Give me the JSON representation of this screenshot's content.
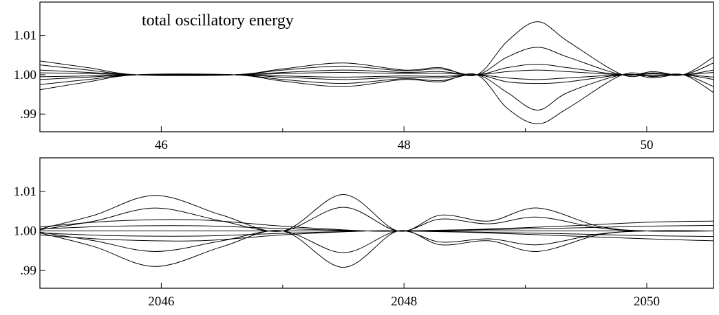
{
  "chart_data": [
    {
      "type": "line",
      "title": "total oscillatory energy",
      "xlabel": "",
      "ylabel": "",
      "xlim": [
        45.0,
        50.55
      ],
      "ylim": [
        0.9855,
        1.0185
      ],
      "x_ticks": [
        46,
        48,
        50
      ],
      "x_tick_labels": [
        "46",
        "48",
        "50"
      ],
      "x_minor_ticks": [
        47,
        49
      ],
      "y_ticks": [
        0.99,
        1.0,
        1.01
      ],
      "y_tick_labels": [
        ".99",
        "1.00",
        "1.01"
      ],
      "grid": false,
      "series": [
        {
          "x": [
            45.0,
            45.4,
            45.8,
            46.6,
            47.0,
            47.5,
            48.0,
            48.3,
            48.6,
            48.85,
            49.1,
            49.35,
            49.8,
            50.05,
            50.3,
            50.55
          ],
          "values": [
            1.0035,
            1.0018,
            1.0,
            1.0,
            1.0015,
            1.003,
            1.0012,
            1.0018,
            1.0,
            1.0085,
            1.0135,
            1.0085,
            1.0,
            1.0005,
            1.0,
            1.0045
          ]
        },
        {
          "x": [
            45.0,
            45.4,
            45.8,
            46.6,
            47.0,
            47.5,
            48.0,
            48.3,
            48.6,
            48.85,
            49.1,
            49.35,
            49.8,
            50.05,
            50.3,
            50.55
          ],
          "values": [
            0.9962,
            0.9982,
            1.0,
            1.0,
            0.9984,
            0.997,
            0.9988,
            0.9982,
            1.0,
            0.9915,
            0.9875,
            0.9915,
            1.0,
            0.9995,
            1.0,
            0.9955
          ]
        },
        {
          "x": [
            45.0,
            45.4,
            45.8,
            46.6,
            47.0,
            47.5,
            48.0,
            48.3,
            48.6,
            48.85,
            49.1,
            49.35,
            49.8,
            50.05,
            50.3,
            50.55
          ],
          "values": [
            1.0025,
            1.0012,
            1.0,
            1.0,
            1.0012,
            1.0022,
            1.001,
            1.0015,
            1.0,
            1.0045,
            1.007,
            1.0045,
            1.0,
            1.0008,
            1.0,
            1.003
          ]
        },
        {
          "x": [
            45.0,
            45.4,
            45.8,
            46.6,
            47.0,
            47.5,
            48.0,
            48.3,
            48.6,
            48.85,
            49.1,
            49.35,
            49.8,
            50.05,
            50.3,
            50.55
          ],
          "values": [
            0.9975,
            0.9988,
            1.0,
            1.0,
            0.9988,
            0.9978,
            0.999,
            0.9985,
            1.0,
            0.9955,
            0.991,
            0.9955,
            1.0,
            0.9992,
            1.0,
            0.997
          ]
        },
        {
          "x": [
            45.0,
            45.4,
            45.8,
            46.6,
            47.0,
            47.5,
            48.0,
            48.3,
            48.6,
            48.85,
            49.1,
            49.35,
            49.8,
            50.05,
            50.3,
            50.55
          ],
          "values": [
            1.0012,
            1.0006,
            1.0,
            1.0,
            1.0006,
            1.0012,
            1.0006,
            1.0008,
            1.0,
            1.0018,
            1.0027,
            1.0018,
            1.0,
            1.0004,
            1.0,
            1.0012
          ]
        },
        {
          "x": [
            45.0,
            45.4,
            45.8,
            46.6,
            47.0,
            47.5,
            48.0,
            48.3,
            48.6,
            48.85,
            49.1,
            49.35,
            49.8,
            50.05,
            50.3,
            50.55
          ],
          "values": [
            0.9988,
            0.9994,
            1.0,
            1.0,
            0.9994,
            0.9988,
            0.9994,
            0.9992,
            1.0,
            0.9982,
            0.9978,
            0.9982,
            1.0,
            0.9996,
            1.0,
            0.9988
          ]
        },
        {
          "x": [
            45.0,
            45.4,
            45.8,
            46.6,
            47.0,
            47.5,
            48.0,
            48.3,
            48.6,
            48.85,
            49.1,
            49.35,
            49.8,
            50.05,
            50.3,
            50.55
          ],
          "values": [
            1.0005,
            1.0003,
            1.0,
            1.0,
            1.0003,
            1.0006,
            1.0003,
            1.0004,
            1.0,
            1.0008,
            1.0012,
            1.0008,
            1.0,
            1.0002,
            1.0,
            1.0006
          ]
        },
        {
          "x": [
            45.0,
            45.4,
            45.8,
            46.6,
            47.0,
            47.5,
            48.0,
            48.3,
            48.6,
            48.85,
            49.1,
            49.35,
            49.8,
            50.05,
            50.3,
            50.55
          ],
          "values": [
            0.9995,
            0.9997,
            1.0,
            1.0,
            0.9997,
            0.9994,
            0.9997,
            0.9996,
            1.0,
            0.9992,
            0.9988,
            0.9992,
            1.0,
            0.9998,
            1.0,
            0.9994
          ]
        }
      ]
    },
    {
      "type": "line",
      "title": "",
      "xlabel": "",
      "ylabel": "",
      "xlim": [
        2045.0,
        2050.55
      ],
      "ylim": [
        0.9855,
        1.0185
      ],
      "x_ticks": [
        2046,
        2048,
        2050
      ],
      "x_tick_labels": [
        "2046",
        "2048",
        "2050"
      ],
      "x_minor_ticks": [
        2047,
        2049
      ],
      "y_ticks": [
        0.99,
        1.0,
        1.01
      ],
      "y_tick_labels": [
        ".99",
        "1.00",
        "1.01"
      ],
      "grid": false,
      "series": [
        {
          "x": [
            2045.0,
            2045.45,
            2045.95,
            2046.5,
            2047.0,
            2047.5,
            2047.95,
            2048.3,
            2048.7,
            2049.1,
            2049.6,
            2050.0,
            2050.55
          ],
          "values": [
            1.0005,
            1.004,
            1.009,
            1.004,
            1.0,
            1.0092,
            1.0,
            1.004,
            1.0025,
            1.0058,
            1.0012,
            1.0,
            1.0
          ]
        },
        {
          "x": [
            2045.0,
            2045.45,
            2045.95,
            2046.5,
            2047.0,
            2047.5,
            2047.95,
            2048.3,
            2048.7,
            2049.1,
            2049.6,
            2050.0,
            2050.55
          ],
          "values": [
            0.9995,
            0.996,
            0.991,
            0.996,
            1.0,
            0.9908,
            1.0,
            0.9965,
            0.9975,
            0.9948,
            0.999,
            1.0,
            1.0
          ]
        },
        {
          "x": [
            2045.0,
            2045.45,
            2045.95,
            2046.5,
            2047.0,
            2047.5,
            2047.95,
            2048.3,
            2048.7,
            2049.1,
            2049.6,
            2050.0,
            2050.55
          ],
          "values": [
            1.0003,
            1.0025,
            1.0058,
            1.0025,
            1.0,
            1.006,
            1.0,
            1.003,
            1.0018,
            1.0035,
            1.0008,
            1.0,
            1.0
          ]
        },
        {
          "x": [
            2045.0,
            2045.45,
            2045.95,
            2046.5,
            2047.0,
            2047.5,
            2047.95,
            2048.3,
            2048.7,
            2049.1,
            2049.6,
            2050.0,
            2050.55
          ],
          "values": [
            0.9997,
            0.9975,
            0.9948,
            0.9975,
            1.0,
            0.9945,
            1.0,
            0.9972,
            0.998,
            0.9965,
            0.9992,
            1.0,
            1.0
          ]
        },
        {
          "x": [
            2045.0,
            2045.6,
            2046.3,
            2047.0,
            2047.7,
            2048.0,
            2048.6,
            2049.3,
            2050.0,
            2050.55
          ],
          "values": [
            1.001,
            1.0025,
            1.0028,
            1.0012,
            1.0,
            1.0,
            1.0004,
            1.0012,
            1.0022,
            1.0025
          ]
        },
        {
          "x": [
            2045.0,
            2045.6,
            2046.3,
            2047.0,
            2047.7,
            2048.0,
            2048.6,
            2049.3,
            2050.0,
            2050.55
          ],
          "values": [
            0.999,
            0.9978,
            0.9975,
            0.999,
            1.0,
            1.0,
            0.9996,
            0.9988,
            0.998,
            0.9975
          ]
        },
        {
          "x": [
            2045.0,
            2045.6,
            2046.3,
            2047.0,
            2047.7,
            2048.0,
            2048.6,
            2049.3,
            2050.0,
            2050.55
          ],
          "values": [
            1.0005,
            1.0012,
            1.0013,
            1.0006,
            1.0,
            1.0,
            1.0003,
            1.0007,
            1.0012,
            1.0014
          ]
        },
        {
          "x": [
            2045.0,
            2045.6,
            2046.3,
            2047.0,
            2047.7,
            2048.0,
            2048.6,
            2049.3,
            2050.0,
            2050.55
          ],
          "values": [
            0.9995,
            0.9988,
            0.9987,
            0.9994,
            1.0,
            1.0,
            0.9997,
            0.9993,
            0.9988,
            0.9986
          ]
        },
        {
          "x": [
            2045.0,
            2046.0,
            2047.0,
            2048.0,
            2049.0,
            2050.0,
            2050.55
          ],
          "values": [
            1.0,
            1.0,
            1.0,
            1.0,
            1.0,
            1.0,
            1.0
          ]
        }
      ]
    }
  ]
}
